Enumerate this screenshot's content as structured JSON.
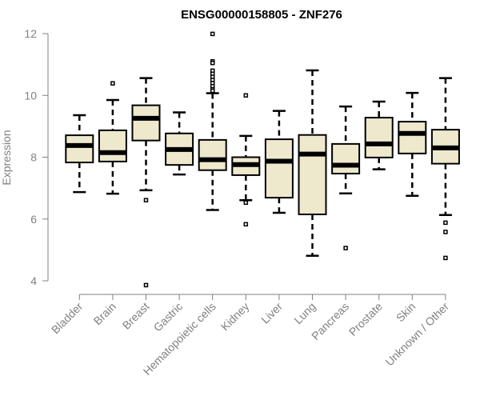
{
  "chart_data": {
    "type": "boxplot",
    "title": "ENSG00000158805 - ZNF276",
    "xlabel": "",
    "ylabel": "Expression",
    "ylim": [
      4,
      12
    ],
    "yticks": [
      4,
      6,
      8,
      10,
      12
    ],
    "grid": false,
    "colors": {
      "box_fill": "#EEE8CD",
      "stroke": "#000000",
      "axis": "#808080",
      "label": "#808080"
    },
    "categories": [
      "Bladder",
      "Brain",
      "Breast",
      "Gastric",
      "Hematopoietic cells",
      "Kidney",
      "Liver",
      "Lung",
      "Pancreas",
      "Prostate",
      "Skin",
      "Unknown / Other"
    ],
    "boxes": [
      {
        "low": 6.87,
        "q1": 7.83,
        "median": 8.38,
        "q3": 8.71,
        "high": 9.36,
        "outliers": []
      },
      {
        "low": 6.82,
        "q1": 7.86,
        "median": 8.15,
        "q3": 8.87,
        "high": 9.85,
        "outliers": [
          10.39
        ]
      },
      {
        "low": 6.93,
        "q1": 8.54,
        "median": 9.26,
        "q3": 9.68,
        "high": 10.56,
        "outliers": [
          6.61,
          3.86
        ]
      },
      {
        "low": 7.44,
        "q1": 7.75,
        "median": 8.25,
        "q3": 8.77,
        "high": 9.45,
        "outliers": []
      },
      {
        "low": 6.29,
        "q1": 7.58,
        "median": 7.92,
        "q3": 8.56,
        "high": 10.07,
        "outliers": [
          11.99,
          11.1,
          11.05,
          10.8,
          10.7,
          10.6,
          10.5,
          10.4,
          10.3,
          10.2,
          10.15
        ]
      },
      {
        "low": 6.61,
        "q1": 7.42,
        "median": 7.76,
        "q3": 8.0,
        "high": 8.69,
        "outliers": [
          10.0,
          6.53,
          5.83
        ]
      },
      {
        "low": 6.2,
        "q1": 6.69,
        "median": 7.87,
        "q3": 8.58,
        "high": 9.5,
        "outliers": []
      },
      {
        "low": 4.81,
        "q1": 6.15,
        "median": 8.1,
        "q3": 8.72,
        "high": 10.81,
        "outliers": []
      },
      {
        "low": 6.83,
        "q1": 7.47,
        "median": 7.74,
        "q3": 8.43,
        "high": 9.64,
        "outliers": [
          5.06
        ]
      },
      {
        "low": 7.61,
        "q1": 7.99,
        "median": 8.43,
        "q3": 9.28,
        "high": 9.8,
        "outliers": []
      },
      {
        "low": 6.75,
        "q1": 8.12,
        "median": 8.77,
        "q3": 9.15,
        "high": 10.08,
        "outliers": []
      },
      {
        "low": 6.13,
        "q1": 7.79,
        "median": 8.3,
        "q3": 8.89,
        "high": 10.56,
        "outliers": [
          5.88,
          5.58,
          4.74
        ]
      }
    ]
  }
}
